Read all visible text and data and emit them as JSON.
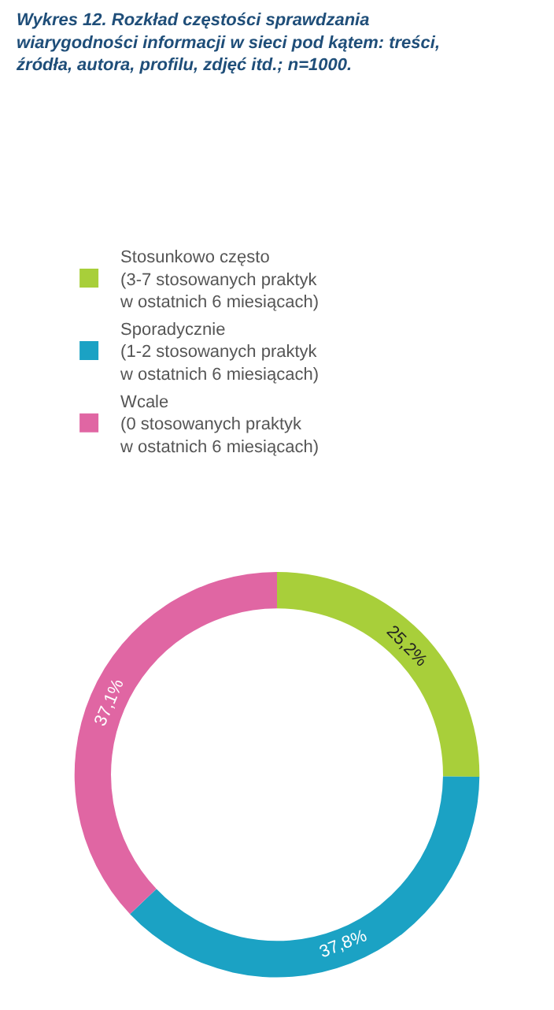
{
  "chart_data": {
    "type": "donut",
    "title": "Wykres 12. Rozkład częstości sprawdzania\nwiarygodności informacji w sieci pod kątem: treści,\nźródła, autora, profilu, zdjęć itd.; n=1000.",
    "categories": [
      "Stosunkowo często\n(3-7 stosowanych praktyk\nw ostatnich 6 miesiącach)",
      "Sporadycznie\n(1-2 stosowanych praktyk\nw ostatnich 6 miesiącach)",
      "Wcale\n(0 stosowanych praktyk\nw ostatnich 6 miesiącach)"
    ],
    "values": [
      25.2,
      37.8,
      37.1
    ],
    "colors": [
      "#a8cf3a",
      "#1ba2c4",
      "#e066a3"
    ],
    "value_labels": [
      "25,2%",
      "37,8%",
      "37,1%"
    ],
    "legend": "top"
  }
}
